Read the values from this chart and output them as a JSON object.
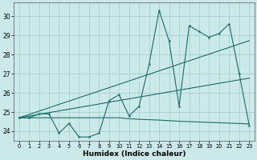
{
  "xlabel": "Humidex (Indice chaleur)",
  "xlim": [
    -0.5,
    23.5
  ],
  "ylim": [
    23.5,
    30.7
  ],
  "yticks": [
    24,
    25,
    26,
    27,
    28,
    29,
    30
  ],
  "xticks": [
    0,
    1,
    2,
    3,
    4,
    5,
    6,
    7,
    8,
    9,
    10,
    11,
    12,
    13,
    14,
    15,
    16,
    17,
    18,
    19,
    20,
    21,
    22,
    23
  ],
  "bg_color": "#cce9e9",
  "grid_color": "#aad0d0",
  "line_color": "#1a6b6b",
  "main_series": [
    24.7,
    24.7,
    24.9,
    24.9,
    23.9,
    24.4,
    23.7,
    23.7,
    23.9,
    25.6,
    25.9,
    24.8,
    25.3,
    27.5,
    30.3,
    28.7,
    25.3,
    29.5,
    29.2,
    28.9,
    29.1,
    29.6,
    27.0,
    24.3
  ],
  "trend_upper": [
    24.7,
    24.87,
    25.05,
    25.22,
    25.4,
    25.57,
    25.75,
    25.92,
    26.1,
    26.27,
    26.45,
    26.62,
    26.8,
    26.97,
    27.15,
    27.32,
    27.5,
    27.67,
    27.85,
    28.02,
    28.2,
    28.37,
    28.55,
    28.72
  ],
  "trend_lower": [
    24.7,
    24.79,
    24.88,
    24.97,
    25.06,
    25.15,
    25.24,
    25.33,
    25.42,
    25.51,
    25.6,
    25.69,
    25.78,
    25.87,
    25.96,
    26.05,
    26.14,
    26.23,
    26.32,
    26.41,
    26.5,
    26.59,
    26.68,
    26.77
  ],
  "flat_series": [
    24.7,
    24.7,
    24.7,
    24.7,
    24.7,
    24.7,
    24.7,
    24.7,
    24.7,
    24.7,
    24.7,
    24.65,
    24.62,
    24.6,
    24.58,
    24.55,
    24.52,
    24.5,
    24.48,
    24.46,
    24.44,
    24.42,
    24.4,
    24.38
  ]
}
